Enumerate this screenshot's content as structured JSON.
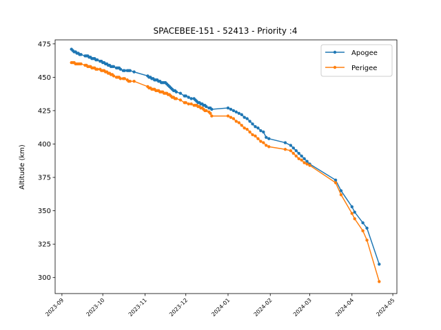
{
  "chart_data": {
    "type": "line",
    "title": "SPACEBEE-151 - 52413 - Priority :4",
    "xlabel": "",
    "ylabel": "Altitude (km)",
    "xlim": [
      "2023-08-27",
      "2024-05-04"
    ],
    "ylim": [
      288,
      478
    ],
    "yticks": [
      300,
      325,
      350,
      375,
      400,
      425,
      450,
      475
    ],
    "xticks": [
      "2023-09-01",
      "2023-10-01",
      "2023-11-01",
      "2023-12-01",
      "2024-01-01",
      "2024-02-01",
      "2024-03-01",
      "2024-04-01",
      "2024-05-01"
    ],
    "xtick_labels": [
      "2023-09",
      "2023-10",
      "2023-11",
      "2023-12",
      "2024-01",
      "2024-02",
      "2024-03",
      "2024-04",
      "2024-05"
    ],
    "legend_position": "upper right",
    "grid": false,
    "series": [
      {
        "name": "Apogee",
        "color": "#1f77b4",
        "marker": "circle",
        "x": [
          "2023-09-08",
          "2023-09-09",
          "2023-09-10",
          "2023-09-11",
          "2023-09-12",
          "2023-09-13",
          "2023-09-14",
          "2023-09-15",
          "2023-09-18",
          "2023-09-19",
          "2023-09-20",
          "2023-09-21",
          "2023-09-22",
          "2023-09-23",
          "2023-09-24",
          "2023-09-25",
          "2023-09-26",
          "2023-09-27",
          "2023-09-29",
          "2023-09-30",
          "2023-10-01",
          "2023-10-02",
          "2023-10-03",
          "2023-10-04",
          "2023-10-05",
          "2023-10-06",
          "2023-10-07",
          "2023-10-08",
          "2023-10-09",
          "2023-10-11",
          "2023-10-12",
          "2023-10-13",
          "2023-10-14",
          "2023-10-16",
          "2023-10-17",
          "2023-10-19",
          "2023-10-20",
          "2023-10-21",
          "2023-10-24",
          "2023-11-03",
          "2023-11-04",
          "2023-11-05",
          "2023-11-06",
          "2023-11-07",
          "2023-11-08",
          "2023-11-09",
          "2023-11-10",
          "2023-11-11",
          "2023-11-12",
          "2023-11-13",
          "2023-11-14",
          "2023-11-15",
          "2023-11-16",
          "2023-11-17",
          "2023-11-18",
          "2023-11-19",
          "2023-11-20",
          "2023-11-21",
          "2023-11-22",
          "2023-11-23",
          "2023-11-24",
          "2023-11-27",
          "2023-11-30",
          "2023-12-01",
          "2023-12-03",
          "2023-12-05",
          "2023-12-07",
          "2023-12-08",
          "2023-12-09",
          "2023-12-10",
          "2023-12-11",
          "2023-12-12",
          "2023-12-13",
          "2023-12-14",
          "2023-12-15",
          "2023-12-16",
          "2023-12-18",
          "2023-12-19",
          "2023-12-20",
          "2024-01-01",
          "2024-01-03",
          "2024-01-05",
          "2024-01-07",
          "2024-01-09",
          "2024-01-11",
          "2024-01-13",
          "2024-01-15",
          "2024-01-17",
          "2024-01-19",
          "2024-01-21",
          "2024-01-23",
          "2024-01-25",
          "2024-01-27",
          "2024-01-29",
          "2024-01-31",
          "2024-02-12",
          "2024-02-16",
          "2024-02-18",
          "2024-02-20",
          "2024-02-22",
          "2024-02-24",
          "2024-02-26",
          "2024-02-28",
          "2024-03-01",
          "2024-03-20",
          "2024-03-24",
          "2024-04-01",
          "2024-04-03",
          "2024-04-09",
          "2024-04-12",
          "2024-04-21"
        ],
        "y": [
          471,
          470,
          469,
          469,
          468,
          468,
          467,
          467,
          466,
          466,
          466,
          465,
          465,
          464,
          464,
          464,
          463,
          463,
          462,
          462,
          461,
          461,
          460,
          460,
          459,
          459,
          458,
          458,
          458,
          457,
          457,
          457,
          456,
          455,
          455,
          455,
          455,
          455,
          454,
          451,
          450,
          450,
          449,
          449,
          448,
          448,
          448,
          447,
          447,
          446,
          446,
          446,
          446,
          445,
          444,
          443,
          442,
          441,
          440,
          440,
          439,
          438,
          436,
          436,
          435,
          434,
          434,
          433,
          432,
          431,
          431,
          430,
          430,
          429,
          429,
          428,
          427,
          427,
          426,
          427,
          426,
          425,
          424,
          423,
          422,
          420,
          419,
          417,
          415,
          413,
          412,
          410,
          409,
          405,
          404,
          401,
          399,
          397,
          395,
          393,
          391,
          389,
          387,
          385,
          373,
          365,
          353,
          349,
          341,
          337,
          310
        ]
      },
      {
        "name": "Perigee",
        "color": "#ff7f0e",
        "marker": "circle",
        "x": [
          "2023-09-08",
          "2023-09-09",
          "2023-09-10",
          "2023-09-11",
          "2023-09-12",
          "2023-09-13",
          "2023-09-14",
          "2023-09-15",
          "2023-09-18",
          "2023-09-19",
          "2023-09-20",
          "2023-09-21",
          "2023-09-22",
          "2023-09-23",
          "2023-09-24",
          "2023-09-25",
          "2023-09-26",
          "2023-09-27",
          "2023-09-29",
          "2023-09-30",
          "2023-10-01",
          "2023-10-02",
          "2023-10-03",
          "2023-10-04",
          "2023-10-05",
          "2023-10-06",
          "2023-10-07",
          "2023-10-08",
          "2023-10-09",
          "2023-10-11",
          "2023-10-12",
          "2023-10-13",
          "2023-10-14",
          "2023-10-16",
          "2023-10-17",
          "2023-10-19",
          "2023-10-20",
          "2023-10-21",
          "2023-10-24",
          "2023-11-03",
          "2023-11-04",
          "2023-11-05",
          "2023-11-06",
          "2023-11-07",
          "2023-11-08",
          "2023-11-09",
          "2023-11-10",
          "2023-11-11",
          "2023-11-12",
          "2023-11-13",
          "2023-11-14",
          "2023-11-15",
          "2023-11-16",
          "2023-11-17",
          "2023-11-18",
          "2023-11-19",
          "2023-11-20",
          "2023-11-21",
          "2023-11-22",
          "2023-11-23",
          "2023-11-24",
          "2023-11-27",
          "2023-11-30",
          "2023-12-01",
          "2023-12-03",
          "2023-12-05",
          "2023-12-07",
          "2023-12-08",
          "2023-12-09",
          "2023-12-10",
          "2023-12-11",
          "2023-12-12",
          "2023-12-13",
          "2023-12-14",
          "2023-12-15",
          "2023-12-16",
          "2023-12-18",
          "2023-12-19",
          "2023-12-20",
          "2024-01-01",
          "2024-01-03",
          "2024-01-05",
          "2024-01-07",
          "2024-01-09",
          "2024-01-11",
          "2024-01-13",
          "2024-01-15",
          "2024-01-17",
          "2024-01-19",
          "2024-01-21",
          "2024-01-23",
          "2024-01-25",
          "2024-01-27",
          "2024-01-29",
          "2024-01-31",
          "2024-02-12",
          "2024-02-16",
          "2024-02-18",
          "2024-02-20",
          "2024-02-22",
          "2024-02-24",
          "2024-02-26",
          "2024-02-28",
          "2024-03-01",
          "2024-03-20",
          "2024-03-24",
          "2024-04-01",
          "2024-04-03",
          "2024-04-09",
          "2024-04-12",
          "2024-04-21"
        ],
        "y": [
          461,
          461,
          461,
          460,
          460,
          460,
          460,
          460,
          459,
          459,
          458,
          458,
          458,
          457,
          457,
          457,
          456,
          456,
          456,
          455,
          455,
          455,
          454,
          454,
          453,
          453,
          452,
          452,
          451,
          450,
          450,
          450,
          449,
          449,
          449,
          448,
          447,
          447,
          447,
          443,
          442,
          442,
          441,
          441,
          441,
          440,
          440,
          440,
          439,
          439,
          439,
          438,
          438,
          438,
          437,
          437,
          436,
          435,
          435,
          434,
          434,
          433,
          431,
          431,
          430,
          430,
          429,
          429,
          429,
          428,
          428,
          427,
          427,
          426,
          425,
          425,
          424,
          423,
          421,
          421,
          420,
          419,
          417,
          416,
          414,
          412,
          411,
          409,
          407,
          406,
          404,
          402,
          401,
          399,
          398,
          396,
          395,
          393,
          391,
          389,
          388,
          386,
          385,
          384,
          371,
          362,
          348,
          344,
          335,
          328,
          297
        ]
      }
    ]
  }
}
